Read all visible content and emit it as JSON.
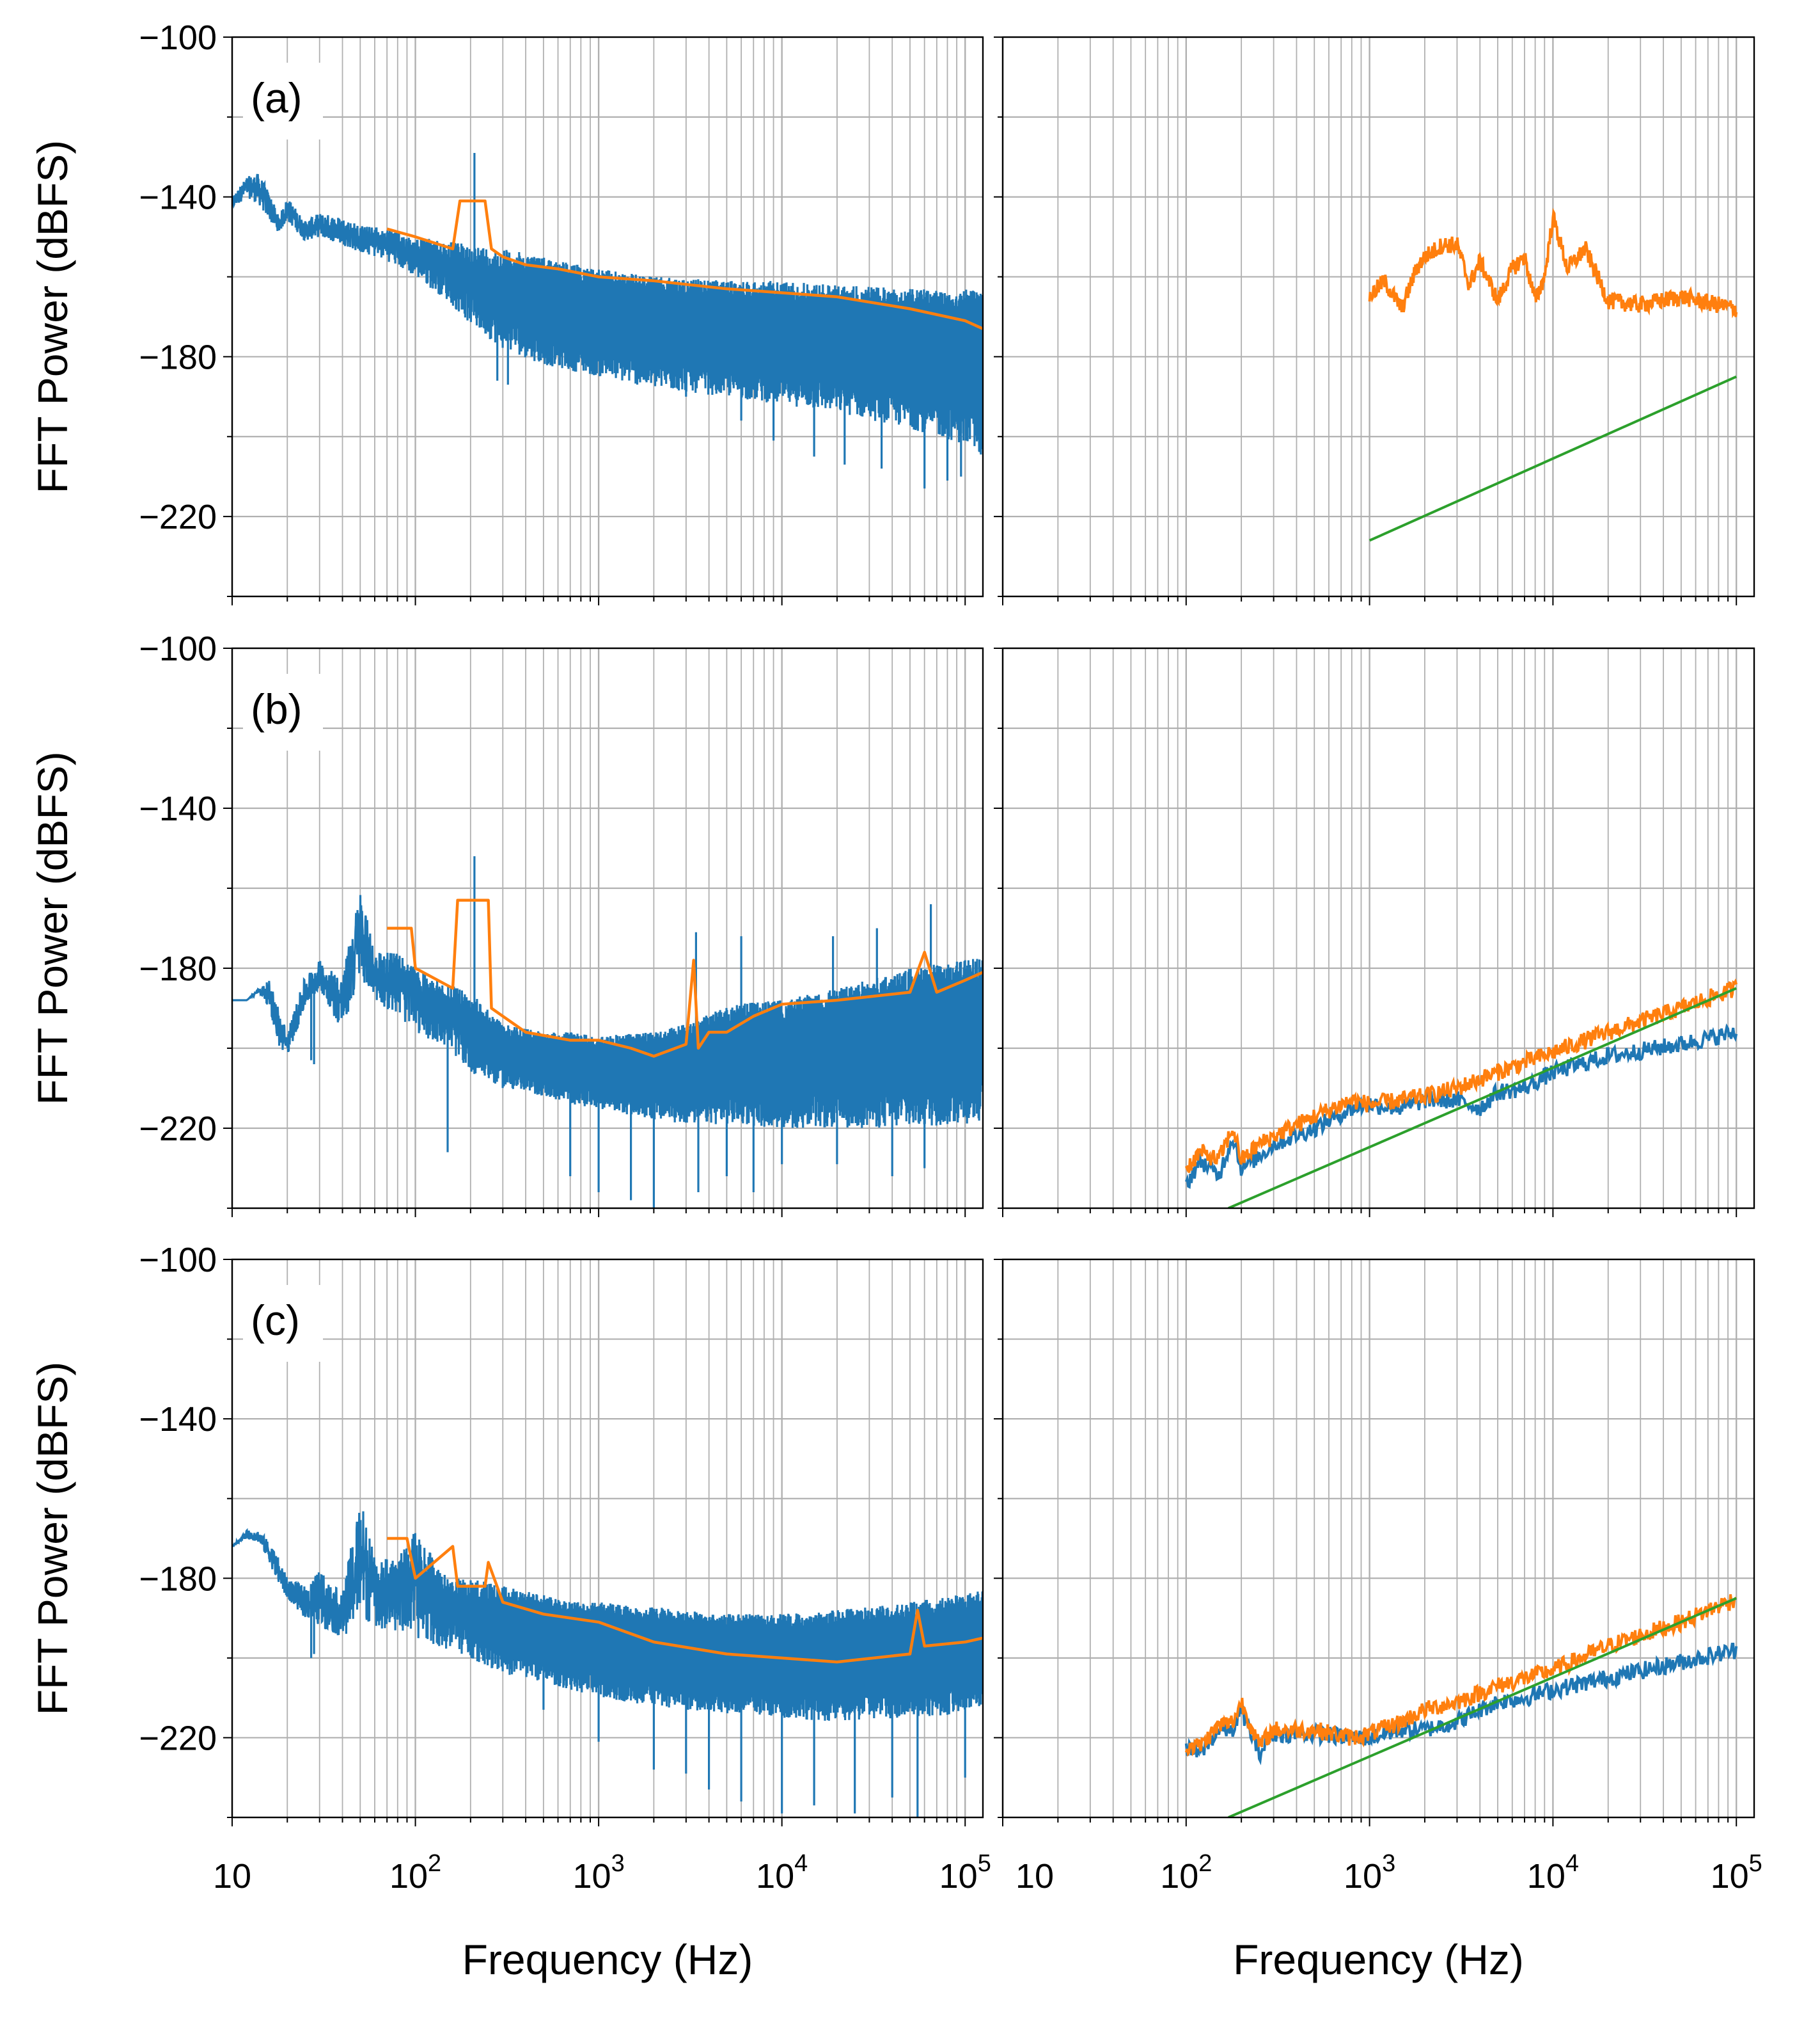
{
  "chart_data": {
    "type": "line",
    "x_axis": {
      "label": "Frequency (Hz)",
      "scale": "log",
      "xlim": [
        10,
        125000
      ],
      "tick_values": [
        10,
        100,
        1000,
        10000,
        100000
      ],
      "tick_labels": [
        "10",
        "10",
        "10",
        "10",
        "10"
      ],
      "tick_superscripts": [
        "",
        "2",
        "3",
        "4",
        "5"
      ]
    },
    "y_axis": {
      "label": "FFT Power (dBFS)",
      "ylim": [
        -240,
        -100
      ],
      "tick_values": [
        -100,
        -140,
        -180,
        -220
      ],
      "tick_labels": [
        "−100",
        "−140",
        "−180",
        "−220"
      ]
    },
    "grid": true,
    "colors": {
      "blue": "#1f77b4",
      "orange": "#ff7f0e",
      "green": "#2ca02c",
      "grid": "#b0b0b0"
    },
    "rows": [
      {
        "label": "(a)",
        "left": {
          "blue_envelope": {
            "x": [
              10,
              12,
              14,
              16,
              18,
              20,
              25,
              30,
              40,
              50,
              70,
              100,
              150,
              200,
              300,
              500,
              1000,
              2000,
              5000,
              10000,
              20000,
              50000,
              100000,
              125000
            ],
            "upper": [
              -140,
              -135,
              -134,
              -139,
              -145,
              -140,
              -146,
              -144,
              -145,
              -147,
              -148,
              -150,
              -151,
              -152,
              -153,
              -155,
              -158,
              -160,
              -161,
              -161,
              -162,
              -163,
              -163,
              -164
            ],
            "lower": [
              -143,
              -140,
              -142,
              -146,
              -149,
              -146,
              -151,
              -150,
              -152,
              -154,
              -156,
              -160,
              -166,
              -172,
              -178,
              -182,
              -185,
              -188,
              -190,
              -192,
              -194,
              -198,
              -202,
              -205
            ],
            "spikes": [
              [
                210,
                -129
              ],
              [
                260,
                -172
              ],
              [
                320,
                -187
              ],
              [
                280,
                -186
              ],
              [
                3000,
                -190
              ],
              [
                6000,
                -196
              ],
              [
                9000,
                -201
              ],
              [
                15000,
                -205
              ],
              [
                22000,
                -207
              ],
              [
                35000,
                -208
              ],
              [
                60000,
                -213
              ],
              [
                80000,
                -211
              ],
              [
                95000,
                -210
              ]
            ]
          },
          "orange": {
            "x": [
              70,
              100,
              160,
              175,
              240,
              260,
              300,
              400,
              600,
              1000,
              2000,
              5000,
              10000,
              20000,
              50000,
              100000,
              125000
            ],
            "y": [
              -148,
              -150,
              -153,
              -141,
              -141,
              -153,
              -155,
              -157,
              -158,
              -160,
              -161,
              -163,
              -164,
              -165,
              -168,
              -171,
              -173
            ]
          }
        },
        "right": {
          "orange": {
            "x": [
              1000,
              1200,
              1500,
              1800,
              2000,
              2500,
              3000,
              3500,
              4000,
              5000,
              6000,
              7000,
              8000,
              9000,
              10000,
              12000,
              15000,
              20000,
              30000,
              50000,
              100000
            ],
            "y": [
              -165,
              -161,
              -168,
              -158,
              -155,
              -152,
              -152,
              -162,
              -156,
              -166,
              -158,
              -155,
              -166,
              -160,
              -145,
              -158,
              -153,
              -166,
              -167,
              -165,
              -168
            ]
          },
          "green": {
            "x": [
              1000,
              100000
            ],
            "y": [
              -226,
              -185
            ]
          }
        }
      },
      {
        "label": "(b)",
        "left": {
          "blue_envelope": {
            "x": [
              10,
              12,
              14,
              16,
              18,
              20,
              25,
              30,
              40,
              50,
              60,
              80,
              100,
              150,
              200,
              300,
              500,
              700,
              1000,
              2000,
              3000,
              5000,
              10000,
              20000,
              50000,
              100000,
              125000
            ],
            "upper": [
              -188,
              -188,
              -185,
              -183,
              -190,
              -196,
              -182,
              -178,
              -182,
              -160,
              -176,
              -176,
              -180,
              -184,
              -186,
              -194,
              -196,
              -196,
              -197,
              -196,
              -194,
              -189,
              -188,
              -185,
              -180,
              -178,
              -177
            ],
            "lower": [
              -188,
              -188,
              -186,
              -190,
              -200,
              -202,
              -190,
              -185,
              -196,
              -182,
              -188,
              -192,
              -196,
              -200,
              -206,
              -210,
              -212,
              -214,
              -215,
              -218,
              -219,
              -219,
              -220,
              -220,
              -220,
              -219,
              -218
            ],
            "spikes": [
              [
                210,
                -152
              ],
              [
                27,
                -203
              ],
              [
                28,
                -204
              ],
              [
                150,
                -226
              ],
              [
                700,
                -232
              ],
              [
                1000,
                -236
              ],
              [
                1500,
                -238
              ],
              [
                2000,
                -242
              ],
              [
                3500,
                -236
              ],
              [
                5000,
                -232
              ],
              [
                7000,
                -236
              ],
              [
                10000,
                -229
              ],
              [
                20000,
                -229
              ],
              [
                40000,
                -232
              ],
              [
                60000,
                -230
              ],
              [
                3400,
                -171
              ],
              [
                6000,
                -172
              ],
              [
                19000,
                -172
              ],
              [
                33000,
                -170
              ],
              [
                65000,
                -164
              ],
              [
                100000,
                -178
              ]
            ]
          },
          "orange": {
            "x": [
              70,
              95,
              100,
              160,
              170,
              250,
              260,
              300,
              400,
              700,
              1000,
              1500,
              2000,
              3000,
              3300,
              3500,
              4000,
              5000,
              7000,
              10000,
              20000,
              50000,
              60000,
              70000,
              100000,
              125000
            ],
            "y": [
              -170,
              -170,
              -180,
              -185,
              -163,
              -163,
              -190,
              -192,
              -196,
              -198,
              -198,
              -200,
              -202,
              -199,
              -178,
              -200,
              -196,
              -196,
              -192,
              -189,
              -188,
              -186,
              -176,
              -186,
              -183,
              -181
            ]
          }
        },
        "right": {
          "blue": {
            "x": [
              100,
              120,
              150,
              180,
              200,
              250,
              300,
              500,
              800,
              1000,
              1500,
              2000,
              3000,
              4000,
              5000,
              7000,
              10000,
              20000,
              50000,
              100000
            ],
            "y": [
              -234,
              -228,
              -232,
              -222,
              -230,
              -227,
              -224,
              -220,
              -215,
              -214,
              -215,
              -213,
              -213,
              -215,
              -211,
              -210,
              -206,
              -202,
              -199,
              -196
            ]
          },
          "orange": {
            "x": [
              100,
              120,
              150,
              180,
              200,
              250,
              300,
              500,
              800,
              1000,
              1500,
              2000,
              3000,
              5000,
              10000,
              20000,
              50000,
              100000
            ],
            "y": [
              -230,
              -226,
              -228,
              -220,
              -228,
              -224,
              -222,
              -217,
              -213,
              -214,
              -213,
              -212,
              -210,
              -206,
              -201,
              -196,
              -190,
              -185
            ]
          },
          "green": {
            "x": [
              170,
              100000
            ],
            "y": [
              -240,
              -185
            ]
          }
        }
      },
      {
        "label": "(c)",
        "left": {
          "blue_envelope": {
            "x": [
              10,
              12,
              14,
              16,
              18,
              20,
              25,
              30,
              40,
              50,
              60,
              80,
              100,
              150,
              200,
              300,
              500,
              700,
              1000,
              2000,
              3000,
              5000,
              10000,
              20000,
              50000,
              100000,
              125000
            ],
            "upper": [
              -172,
              -168,
              -168,
              -171,
              -175,
              -180,
              -182,
              -178,
              -184,
              -159,
              -175,
              -175,
              -168,
              -180,
              -180,
              -182,
              -184,
              -186,
              -186,
              -187,
              -188,
              -189,
              -189,
              -188,
              -186,
              -184,
              -183
            ],
            "lower": [
              -172,
              -170,
              -171,
              -176,
              -182,
              -185,
              -190,
              -192,
              -195,
              -190,
              -192,
              -194,
              -195,
              -198,
              -200,
              -204,
              -206,
              -208,
              -210,
              -212,
              -213,
              -214,
              -215,
              -216,
              -215,
              -214,
              -212
            ],
            "spikes": [
              [
                27,
                -200
              ],
              [
                28,
                -199
              ],
              [
                500,
                -213
              ],
              [
                1000,
                -221
              ],
              [
                2000,
                -228
              ],
              [
                3000,
                -229
              ],
              [
                4000,
                -233
              ],
              [
                6000,
                -236
              ],
              [
                10000,
                -239
              ],
              [
                15000,
                -237
              ],
              [
                25000,
                -239
              ],
              [
                40000,
                -235
              ],
              [
                55000,
                -241
              ],
              [
                60000,
                -194
              ],
              [
                100000,
                -230
              ]
            ]
          },
          "orange": {
            "x": [
              70,
              90,
              100,
              160,
              170,
              240,
              250,
              300,
              500,
              1000,
              2000,
              5000,
              10000,
              20000,
              50000,
              55000,
              60000,
              100000,
              125000
            ],
            "y": [
              -170,
              -170,
              -180,
              -172,
              -182,
              -182,
              -176,
              -186,
              -189,
              -191,
              -196,
              -199,
              -200,
              -201,
              -199,
              -188,
              -197,
              -196,
              -195
            ]
          }
        },
        "right": {
          "blue": {
            "x": [
              100,
              120,
              150,
              180,
              200,
              250,
              300,
              500,
              800,
              1000,
              1500,
              2000,
              3000,
              4000,
              5000,
              7000,
              10000,
              20000,
              50000,
              100000
            ],
            "y": [
              -223,
              -224,
              -218,
              -218,
              -213,
              -224,
              -219,
              -219,
              -220,
              -220,
              -218,
              -218,
              -216,
              -213,
              -211,
              -210,
              -208,
              -205,
              -201,
              -198
            ]
          },
          "orange": {
            "x": [
              100,
              120,
              150,
              180,
              200,
              250,
              300,
              500,
              800,
              1000,
              1500,
              2000,
              3000,
              5000,
              10000,
              20000,
              50000,
              100000
            ],
            "y": [
              -222,
              -222,
              -217,
              -216,
              -211,
              -222,
              -218,
              -218,
              -220,
              -219,
              -216,
              -213,
              -211,
              -207,
              -203,
              -197,
              -191,
              -185
            ]
          },
          "green": {
            "x": [
              170,
              100000
            ],
            "y": [
              -240,
              -185
            ]
          }
        }
      }
    ]
  }
}
